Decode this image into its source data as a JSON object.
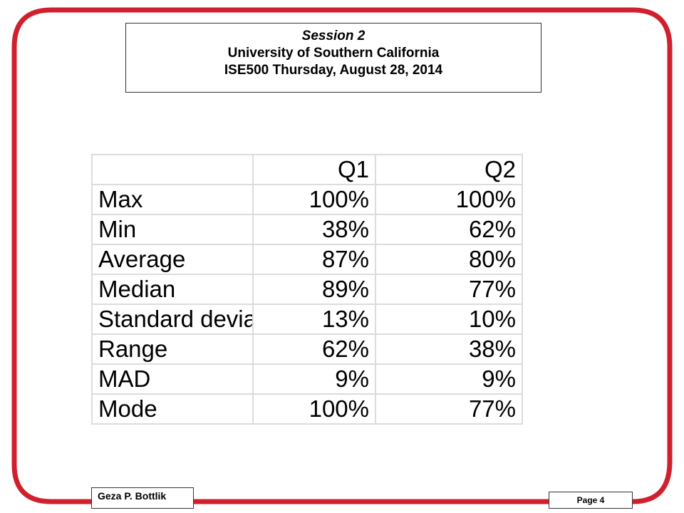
{
  "header": {
    "session": "Session 2",
    "university": "University of Southern California",
    "course": "ISE500 Thursday,  August 28, 2014"
  },
  "table": {
    "columns": [
      "",
      "Q1",
      "Q2"
    ],
    "rows": [
      {
        "label": "Max",
        "q1": "100%",
        "q2": "100%"
      },
      {
        "label": "Min",
        "q1": "38%",
        "q2": "62%"
      },
      {
        "label": "Average",
        "q1": "87%",
        "q2": "80%"
      },
      {
        "label": "Median",
        "q1": "89%",
        "q2": "77%"
      },
      {
        "label": "Standard devia",
        "q1": "13%",
        "q2": "10%"
      },
      {
        "label": "Range",
        "q1": "62%",
        "q2": "38%"
      },
      {
        "label": "MAD",
        "q1": "9%",
        "q2": "9%"
      },
      {
        "label": "Mode",
        "q1": "100%",
        "q2": "77%"
      }
    ]
  },
  "footer": {
    "author": "Geza P. Bottlik",
    "page": "Page 4"
  },
  "colors": {
    "frame": "#d0202e",
    "grid": "#dcdcdc"
  }
}
